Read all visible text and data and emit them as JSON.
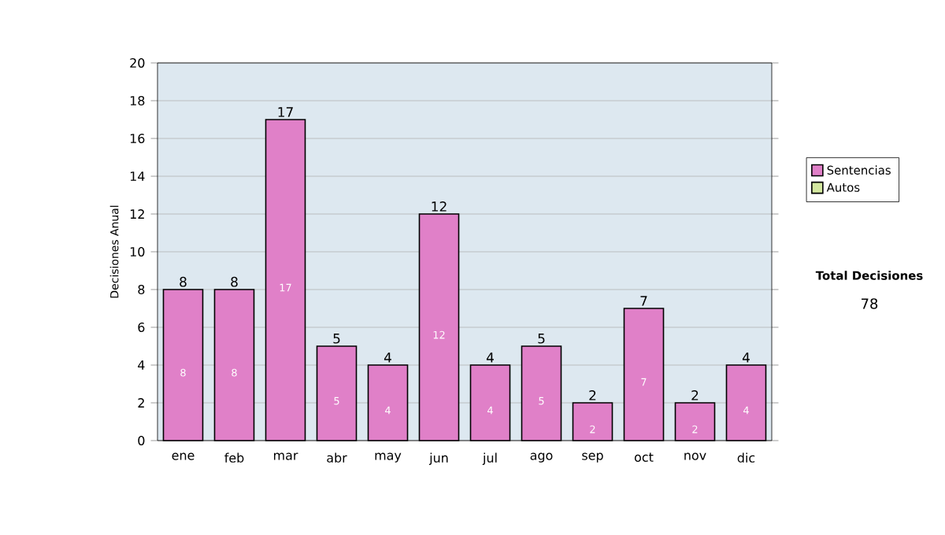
{
  "chart_data": {
    "type": "bar",
    "stacked": true,
    "ylabel": "Decisiones Anual",
    "categories": [
      "ene",
      "feb",
      "mar",
      "abr",
      "may",
      "jun",
      "jul",
      "ago",
      "sep",
      "oct",
      "nov",
      "dic"
    ],
    "series": [
      {
        "name": "Sentencias",
        "color": "#e080c8",
        "values": [
          8,
          8,
          17,
          5,
          4,
          12,
          4,
          5,
          2,
          7,
          2,
          4
        ]
      },
      {
        "name": "Autos",
        "color": "#d4e8a0",
        "values": [
          null,
          null,
          null,
          null,
          null,
          null,
          null,
          null,
          null,
          null,
          null,
          null
        ]
      }
    ],
    "totals": [
      "8",
      "8",
      "17",
      "5",
      "4",
      "12",
      "4",
      "5",
      "2",
      "7",
      "2",
      "4"
    ],
    "data_labels": true,
    "ylim": [
      0,
      20
    ],
    "yticks": [
      0,
      2,
      4,
      6,
      8,
      10,
      12,
      14,
      16,
      18,
      20
    ],
    "grid": "y",
    "legend": "right",
    "annotations": [
      "Total Decisiones",
      "78"
    ]
  }
}
